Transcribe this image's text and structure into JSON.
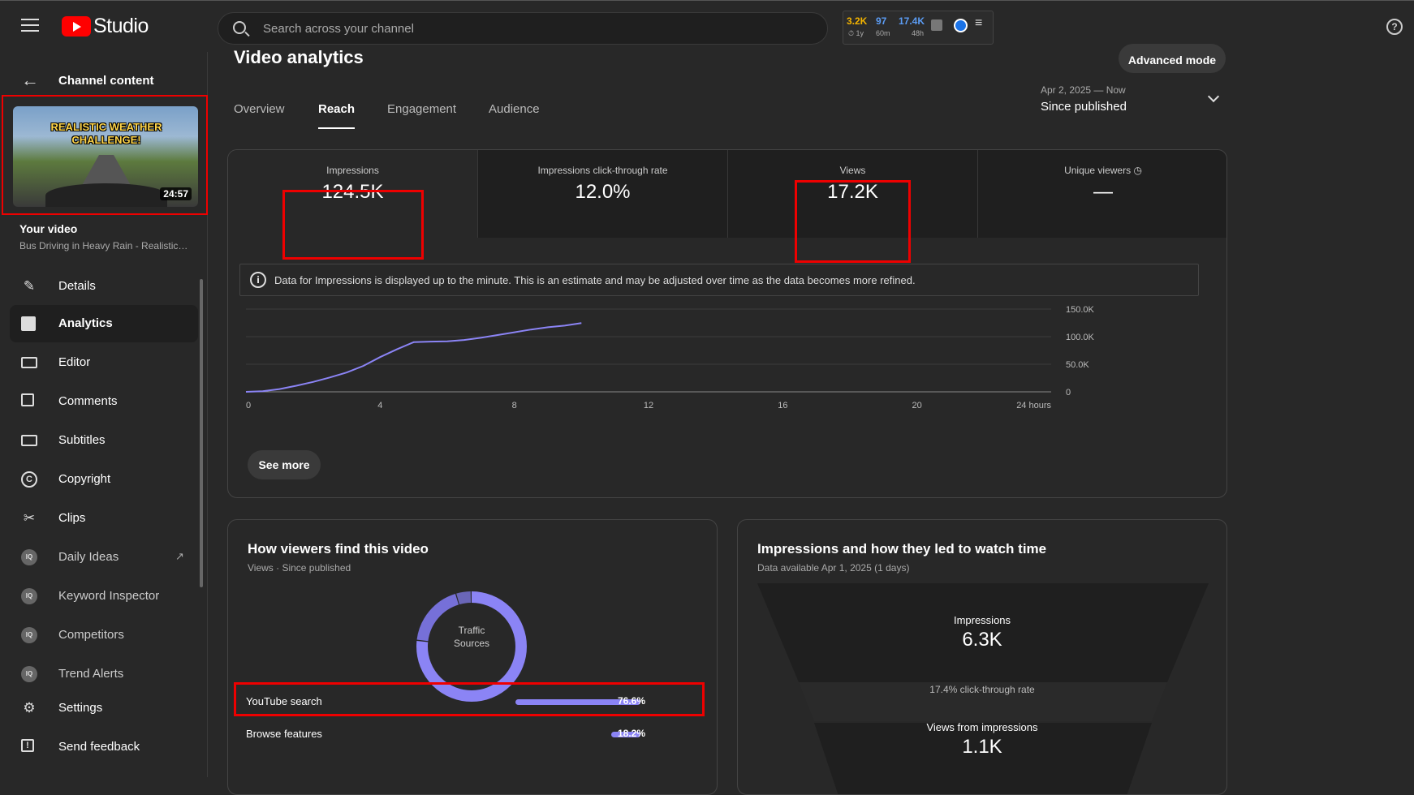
{
  "app": {
    "name": "Studio"
  },
  "search": {
    "placeholder": "Search across your channel"
  },
  "ext_widget": {
    "stat1": "3.2K",
    "stat1_sub": "1y",
    "stat2": "97",
    "stat2_sub": "60m",
    "stat3": "17.4K",
    "stat3_sub": "48h"
  },
  "help": {
    "glyph": "?"
  },
  "sidebar": {
    "back_label": "Channel content",
    "video": {
      "thumb_title": "REALISTIC WEATHER CHALLENGE!",
      "duration": "24:57",
      "label": "Your video",
      "title": "Bus Driving in Heavy Rain - Realistic Weather Challenge!"
    },
    "items": [
      {
        "label": "Details",
        "icon": "pencil-icon"
      },
      {
        "label": "Analytics",
        "icon": "analytics-icon"
      },
      {
        "label": "Editor",
        "icon": "clapper-icon"
      },
      {
        "label": "Comments",
        "icon": "comment-icon"
      },
      {
        "label": "Subtitles",
        "icon": "subtitles-icon"
      },
      {
        "label": "Copyright",
        "icon": "copyright-icon"
      },
      {
        "label": "Clips",
        "icon": "scissors-icon"
      },
      {
        "label": "Daily Ideas",
        "icon": "vidiq-icon"
      },
      {
        "label": "Keyword Inspector",
        "icon": "vidiq-icon"
      },
      {
        "label": "Competitors",
        "icon": "vidiq-icon"
      },
      {
        "label": "Trend Alerts",
        "icon": "vidiq-icon"
      },
      {
        "label": "Settings",
        "icon": "gear-icon"
      },
      {
        "label": "Send feedback",
        "icon": "feedback-icon"
      }
    ]
  },
  "main": {
    "title": "Video analytics",
    "advanced_mode": "Advanced mode",
    "tabs": [
      "Overview",
      "Reach",
      "Engagement",
      "Audience"
    ],
    "active_tab": "Reach",
    "date_range": {
      "sub": "Apr 2, 2025 — Now",
      "main": "Since published"
    },
    "metrics": [
      {
        "label": "Impressions",
        "value": "124.5K"
      },
      {
        "label": "Impressions click-through rate",
        "value": "12.0%"
      },
      {
        "label": "Views",
        "value": "17.2K"
      },
      {
        "label": "Unique viewers",
        "value": "—"
      }
    ],
    "info": "Data for Impressions is displayed up to the minute. This is an estimate and may be adjusted over time as the data becomes more refined.",
    "see_more": "See more",
    "traffic": {
      "title": "How viewers find this video",
      "subtitle": "Views · Since published",
      "donut_label_1": "Traffic",
      "donut_label_2": "Sources",
      "sources": [
        {
          "name": "YouTube search",
          "pct": "76.6%",
          "value": 76.6
        },
        {
          "name": "Browse features",
          "pct": "18.2%",
          "value": 18.2
        }
      ]
    },
    "funnel": {
      "title": "Impressions and how they led to watch time",
      "subtitle": "Data available Apr 1, 2025 (1 days)",
      "impressions_label": "Impressions",
      "impressions_value": "6.3K",
      "ctr": "17.4% click-through rate",
      "views_label": "Views from impressions",
      "views_value": "1.1K"
    }
  },
  "chart_data": {
    "type": "line",
    "title": "",
    "xlabel": "",
    "ylabel": "",
    "x_ticks": [
      "0",
      "4",
      "8",
      "12",
      "16",
      "20",
      "24 hours"
    ],
    "y_ticks": [
      "0",
      "50.0K",
      "100.0K",
      "150.0K"
    ],
    "xlim": [
      0,
      24
    ],
    "ylim": [
      0,
      150000
    ],
    "series": [
      {
        "x": [
          0,
          0.5,
          1,
          1.5,
          2,
          2.5,
          3,
          3.5,
          4,
          4.5,
          5,
          5.5,
          6,
          6.5,
          7,
          7.5,
          8,
          8.5,
          9,
          9.5,
          10
        ],
        "y": [
          0,
          1000,
          5000,
          11000,
          18000,
          26000,
          35000,
          47000,
          63000,
          77000,
          90000,
          91000,
          91500,
          94000,
          98000,
          103000,
          108000,
          113000,
          117000,
          120000,
          124500
        ]
      }
    ],
    "color": "#8b84f5",
    "grid": true
  },
  "colors": {
    "accent": "#8b84f5",
    "highlight": "#ee0000",
    "yt_red": "#ff0000"
  }
}
